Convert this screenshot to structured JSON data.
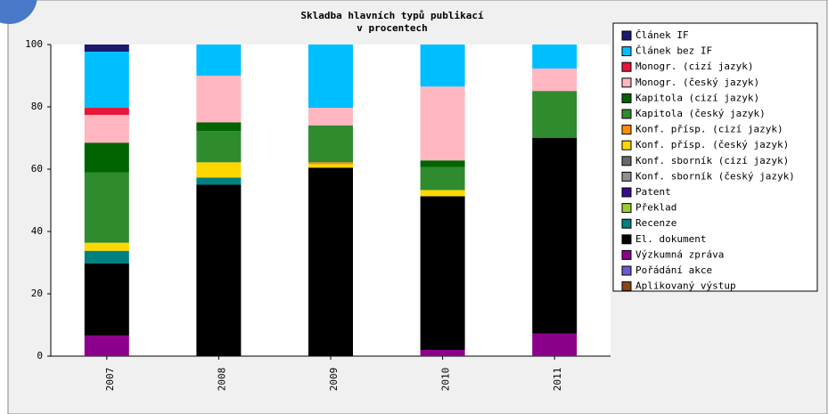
{
  "chart_data": {
    "type": "stacked_bar",
    "title": "Skladba hlavních typů publikací",
    "subtitle": "v procentech",
    "categories": [
      "2007",
      "2008",
      "2009",
      "2010",
      "2011"
    ],
    "ylim": [
      0,
      100
    ],
    "yticks": [
      0,
      20,
      40,
      60,
      80,
      100
    ],
    "legend": "right",
    "series": [
      {
        "name": "Článek IF",
        "color": "#1a1a6e",
        "values": [
          2.3,
          0,
          0,
          0,
          0
        ]
      },
      {
        "name": "Článek bez IF",
        "color": "#00bfff",
        "values": [
          18,
          10,
          20.3,
          13.5,
          7.7
        ]
      },
      {
        "name": "Monogr. (cizí jazyk)",
        "color": "#e8173a",
        "values": [
          2.3,
          0,
          0,
          0,
          0
        ]
      },
      {
        "name": "Monogr. (český jazyk)",
        "color": "#ffb6c1",
        "values": [
          8.9,
          15,
          5.7,
          23.7,
          7.2
        ]
      },
      {
        "name": "Kapitola (cizí jazyk)",
        "color": "#006400",
        "values": [
          9.5,
          2.8,
          0,
          2.1,
          0
        ]
      },
      {
        "name": "Kapitola (český jazyk)",
        "color": "#2e8b2e",
        "values": [
          22.6,
          10,
          11.8,
          7.4,
          15.1
        ]
      },
      {
        "name": "Konf. přísp. (cizí jazyk)",
        "color": "#ff8c00",
        "values": [
          0,
          0,
          0.6,
          0,
          0
        ]
      },
      {
        "name": "Konf. přísp. (český jazyk)",
        "color": "#ffd700",
        "values": [
          2.6,
          4.9,
          1.1,
          2,
          0
        ]
      },
      {
        "name": "Konf. sborník (cizí jazyk)",
        "color": "#696969",
        "values": [
          0,
          0,
          0,
          0,
          0
        ]
      },
      {
        "name": "Konf. sborník (český jazyk)",
        "color": "#909090",
        "values": [
          0,
          0,
          0,
          0,
          0
        ]
      },
      {
        "name": "Patent",
        "color": "#3c0a8c",
        "values": [
          0,
          0,
          0,
          0,
          0
        ]
      },
      {
        "name": "Překlad",
        "color": "#9acd32",
        "values": [
          0,
          0,
          0,
          0,
          0
        ]
      },
      {
        "name": "Recenze",
        "color": "#008080",
        "values": [
          4,
          2.3,
          0,
          0,
          0
        ]
      },
      {
        "name": "El. dokument",
        "color": "#000000",
        "values": [
          23.2,
          55,
          60.5,
          49.3,
          62.8
        ]
      },
      {
        "name": "Výzkumná zpráva",
        "color": "#8b008b",
        "values": [
          6.6,
          0,
          0,
          2,
          7.2
        ]
      },
      {
        "name": "Pořádání akce",
        "color": "#6a5acd",
        "values": [
          0,
          0,
          0,
          0,
          0
        ]
      },
      {
        "name": "Aplikovaný výstup",
        "color": "#8b4513",
        "values": [
          0,
          0,
          0,
          0,
          0
        ]
      }
    ]
  }
}
